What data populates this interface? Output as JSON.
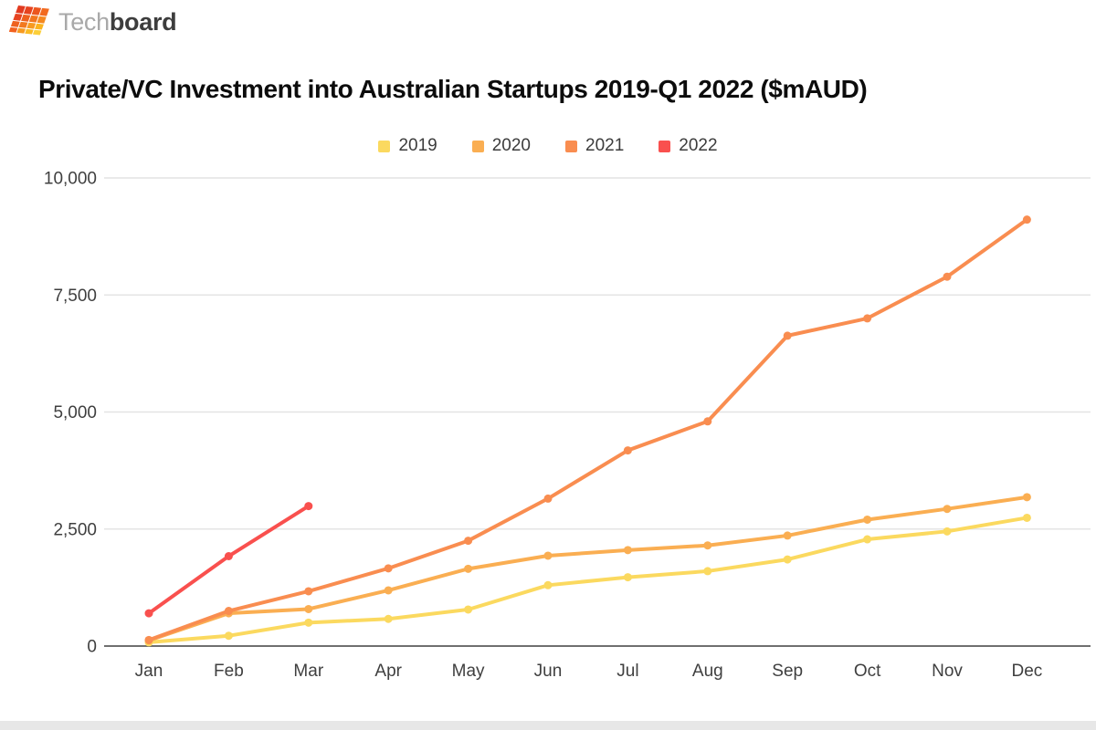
{
  "brand": {
    "logo_text_light": "Tech",
    "logo_text_bold": "board",
    "tile_colors": [
      [
        "#e23a20",
        "#e64320",
        "#ec561f",
        "#f26a1f"
      ],
      [
        "#e64320",
        "#ee611f",
        "#f2761f",
        "#f5881f"
      ],
      [
        "#ee611f",
        "#f2791f",
        "#f79a20",
        "#fbb31f"
      ],
      [
        "#f2611f",
        "#f79a20",
        "#fbbb24",
        "#fccf39"
      ]
    ]
  },
  "colors": {
    "axis_text": "#3f3f3f",
    "gridline": "#e4e4e4",
    "axis_line": "#6f6f6f",
    "footer_strip": "#e7e7e7"
  },
  "chart_data": {
    "type": "line",
    "title": "Private/VC Investment into Australian Startups 2019-Q1 2022 ($mAUD)",
    "xlabel": "",
    "ylabel": "",
    "x": [
      "Jan",
      "Feb",
      "Mar",
      "Apr",
      "May",
      "Jun",
      "Jul",
      "Aug",
      "Sep",
      "Oct",
      "Nov",
      "Dec"
    ],
    "ylim": [
      0,
      10000
    ],
    "yticks": [
      0,
      2500,
      5000,
      7500,
      10000
    ],
    "ytick_labels": [
      "0",
      "2,500",
      "5,000",
      "7,500",
      "10,000"
    ],
    "grid": "horizontal-only",
    "legend_position": "top-center",
    "marker": "circle",
    "series": [
      {
        "name": "2019",
        "color": "#fbd95f",
        "values": [
          80,
          220,
          500,
          580,
          780,
          1300,
          1470,
          1600,
          1850,
          2280,
          2450,
          2740
        ]
      },
      {
        "name": "2020",
        "color": "#faae52",
        "values": [
          120,
          700,
          790,
          1190,
          1650,
          1930,
          2050,
          2150,
          2360,
          2700,
          2930,
          3180
        ]
      },
      {
        "name": "2021",
        "color": "#f98d50",
        "values": [
          130,
          750,
          1170,
          1660,
          2250,
          3150,
          4180,
          4800,
          6630,
          7000,
          7890,
          9110
        ]
      },
      {
        "name": "2022",
        "color": "#f9504e",
        "values": [
          700,
          1920,
          2990
        ]
      }
    ]
  }
}
